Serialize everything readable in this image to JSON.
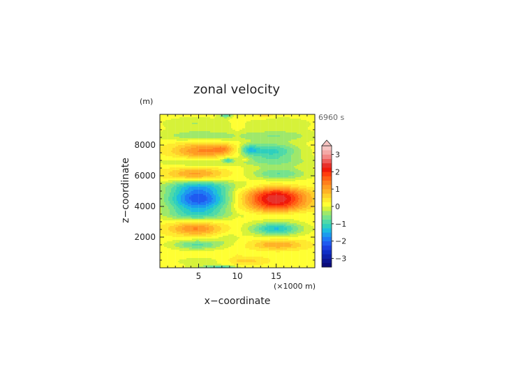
{
  "chart_data": {
    "type": "heatmap",
    "title": "zonal velocity",
    "xlabel": "x−coordinate",
    "ylabel": "z−coordinate",
    "x_unit": "(×1000 m)",
    "y_unit": "(m)",
    "time_label": "6960 s",
    "xlim": [
      0,
      20
    ],
    "ylim": [
      0,
      10000
    ],
    "x_ticks": [
      5,
      10,
      15
    ],
    "x_tick_labels": [
      "5",
      "10",
      "15"
    ],
    "y_ticks": [
      2000,
      4000,
      6000,
      8000
    ],
    "y_tick_labels": [
      "2000",
      "4000",
      "6000",
      "8000"
    ],
    "colorbar": {
      "levels": [
        -3.5,
        -3.25,
        -3,
        -2.75,
        -2.5,
        -2.25,
        -2,
        -1.75,
        -1.5,
        -1.25,
        -1,
        -0.75,
        -0.5,
        -0.25,
        0,
        0.25,
        0.5,
        0.75,
        1,
        1.25,
        1.5,
        1.75,
        2,
        2.25,
        2.5,
        2.75,
        3,
        3.25,
        3.5
      ],
      "tick_values": [
        -3,
        -2,
        -1,
        0,
        1,
        2,
        3
      ],
      "tick_labels": [
        "−3",
        "−2",
        "−1",
        "0",
        "1",
        "2",
        "3"
      ],
      "colors": [
        "#0b0b7a",
        "#0c1591",
        "#0d20ab",
        "#0f2dc6",
        "#1a3fe0",
        "#1f5af0",
        "#1e79f5",
        "#1c9bee",
        "#1cbbe0",
        "#2ecfbd",
        "#4ed9a8",
        "#75e38c",
        "#9ee86a",
        "#d6f239",
        "#ffff33",
        "#ffe92e",
        "#ffcf2a",
        "#ffb326",
        "#ff9b22",
        "#ff7f1c",
        "#ff6014",
        "#ff3d0d",
        "#f01a0a",
        "#e8312a",
        "#ee5e5a",
        "#f28886",
        "#f4a9a6",
        "#f6c4c2"
      ]
    },
    "field": {
      "x_max": 20,
      "z_max": 10000,
      "base": 0.15,
      "front_x": 10,
      "blobs": [
        {
          "x": 5,
          "z": 4500,
          "amp": -2.35,
          "sx": 2.8,
          "sz": 650
        },
        {
          "x": 15,
          "z": 4500,
          "amp": 2.35,
          "sx": 2.8,
          "sz": 650
        },
        {
          "x": 4.6,
          "z": 2550,
          "amp": 1.15,
          "sx": 2.3,
          "sz": 300
        },
        {
          "x": 15,
          "z": 2550,
          "amp": -1.45,
          "sx": 2.3,
          "sz": 300
        },
        {
          "x": 4.6,
          "z": 6100,
          "amp": 1.0,
          "sx": 2.6,
          "sz": 300
        },
        {
          "x": 15.3,
          "z": 6100,
          "amp": -1.0,
          "sx": 2.6,
          "sz": 300
        },
        {
          "x": 5.5,
          "z": 7600,
          "amp": 1.15,
          "sx": 2.6,
          "sz": 380
        },
        {
          "x": 8.2,
          "z": 7750,
          "amp": 0.7,
          "sx": 0.9,
          "sz": 200
        },
        {
          "x": 14.3,
          "z": 7600,
          "amp": -1.25,
          "sx": 2.6,
          "sz": 380
        },
        {
          "x": 11.6,
          "z": 7700,
          "amp": -0.85,
          "sx": 0.8,
          "sz": 230
        },
        {
          "x": 4.8,
          "z": 1500,
          "amp": -0.95,
          "sx": 2.3,
          "sz": 220
        },
        {
          "x": 15.2,
          "z": 1500,
          "amp": 0.85,
          "sx": 2.3,
          "sz": 220
        },
        {
          "x": 4.6,
          "z": 3450,
          "amp": -0.6,
          "sx": 3.2,
          "sz": 260
        },
        {
          "x": 15.4,
          "z": 3450,
          "amp": -0.5,
          "sx": 3.2,
          "sz": 260
        },
        {
          "x": 5,
          "z": 5350,
          "amp": -0.6,
          "sx": 3.4,
          "sz": 260
        },
        {
          "x": 15,
          "z": 5350,
          "amp": -0.55,
          "sx": 3.4,
          "sz": 260
        },
        {
          "x": 5,
          "z": 6900,
          "amp": -0.55,
          "sx": 3.4,
          "sz": 240
        },
        {
          "x": 15,
          "z": 6900,
          "amp": -0.55,
          "sx": 3.4,
          "sz": 240
        },
        {
          "x": 5,
          "z": 8600,
          "amp": -0.6,
          "sx": 3.6,
          "sz": 250
        },
        {
          "x": 15,
          "z": 8600,
          "amp": -0.6,
          "sx": 3.6,
          "sz": 250
        },
        {
          "x": 4.5,
          "z": 9400,
          "amp": -0.4,
          "sx": 3.0,
          "sz": 300
        },
        {
          "x": 15.5,
          "z": 9400,
          "amp": -0.35,
          "sx": 3.0,
          "sz": 300
        },
        {
          "x": 8.5,
          "z": 9950,
          "amp": -0.95,
          "sx": 0.6,
          "sz": 120
        },
        {
          "x": 13.6,
          "z": 9950,
          "amp": 0.5,
          "sx": 0.6,
          "sz": 120
        },
        {
          "x": 8.8,
          "z": 7000,
          "amp": -0.9,
          "sx": 0.45,
          "sz": 100
        },
        {
          "x": 11,
          "z": 7050,
          "amp": 0.4,
          "sx": 0.4,
          "sz": 90
        },
        {
          "x": 8.2,
          "z": 30,
          "amp": -0.9,
          "sx": 1.2,
          "sz": 80
        },
        {
          "x": 6.5,
          "z": 50,
          "amp": -0.5,
          "sx": 1.8,
          "sz": 80
        },
        {
          "x": 11.2,
          "z": 450,
          "amp": 0.45,
          "sx": 1.8,
          "sz": 180
        },
        {
          "x": 5.2,
          "z": 400,
          "amp": -0.3,
          "sx": 2.5,
          "sz": 200
        },
        {
          "x": 9,
          "z": 1900,
          "amp": -0.35,
          "sx": 1.2,
          "sz": 250
        }
      ]
    }
  }
}
